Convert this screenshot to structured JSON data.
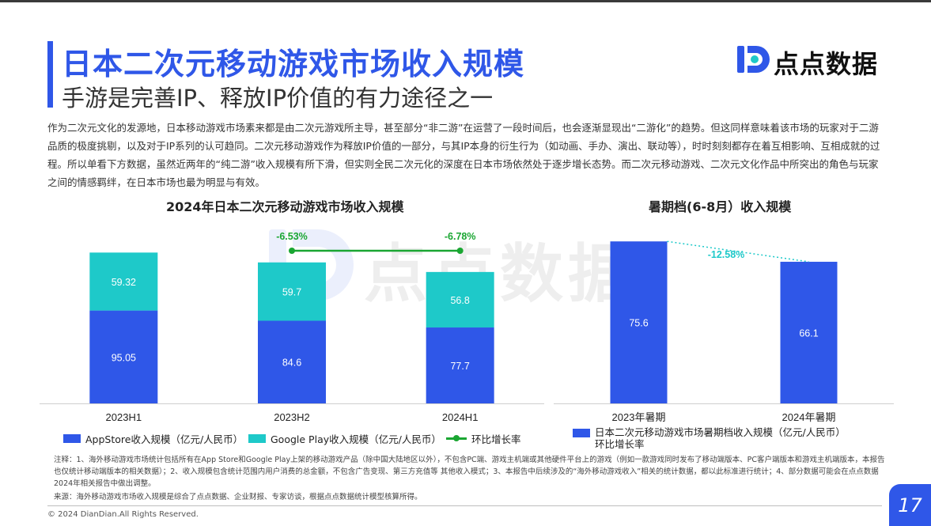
{
  "header": {
    "title": "日本二次元移动游戏市场收入规模",
    "subtitle": "手游是完善IP、释放IP价值的有力途径之一",
    "logo_text": "点点数据"
  },
  "intro": "作为二次元文化的发源地，日本移动游戏市场素来都是由二次元游戏所主导，甚至部分“非二游”在运营了一段时间后，也会逐渐显现出“二游化”的趋势。但这同样意味着该市场的玩家对于二游品质的极度挑剔，以及对于IP系列的认可趋同。二次元移动游戏作为释放IP价值的一部分，与其IP本身的衍生行为（如动画、手办、演出、联动等），时时刻刻都存在着互相影响、互相成就的过程。所以单看下方数据，虽然近两年的“纯二游”收入规模有所下滑，但实则全民二次元化的深度在日本市场依然处于逐步增长态势。而二次元移动游戏、二次元文化作品中所突出的角色与玩家之间的情感羁绊，在日本市场也最为明显与有效。",
  "colors": {
    "appstore": "#2f57e8",
    "googleplay": "#1ec9c9",
    "growth_line": "#1aa632",
    "summer": "#2f57e8",
    "summer_growth": "#1ec9c9"
  },
  "chart_data": [
    {
      "type": "bar",
      "stacked": true,
      "title": "2024年日本二次元移动游戏市场收入规模",
      "categories": [
        "2023H1",
        "2023H2",
        "2024H1"
      ],
      "series": [
        {
          "name": "AppStore收入规模（亿元/人民币）",
          "values": [
            95.05,
            84.6,
            77.7
          ]
        },
        {
          "name": "Google Play收入规模（亿元/人民币）",
          "values": [
            59.32,
            59.7,
            56.8
          ]
        }
      ],
      "line_series": {
        "name": "环比增长率",
        "labels": [
          "",
          "-6.53%",
          "-6.78%"
        ]
      },
      "data_labels": {
        "appstore": [
          "95.05",
          "84.6",
          "77.7"
        ],
        "googleplay": [
          "59.32",
          "59.7",
          "56.8"
        ]
      },
      "ylim": [
        0,
        170
      ],
      "grid": false,
      "legend": "bottom"
    },
    {
      "type": "bar",
      "title": "暑期档(6-8月）收入规模",
      "categories": [
        "2023年暑期",
        "2024年暑期"
      ],
      "series": [
        {
          "name": "日本二次元移动游戏市场暑期档收入规模（亿元/人民币）",
          "values": [
            75.6,
            66.1
          ]
        }
      ],
      "growth_label": "-12.58%",
      "growth_name": "环比增长率",
      "data_labels": [
        "75.6",
        "66.1"
      ],
      "ylim": [
        0,
        90
      ],
      "grid": false,
      "legend": "bottom"
    }
  ],
  "notes": {
    "note": "注释：1、海外移动游戏市场统计包括所有在App Store和Google Play上架的移动游戏产品（除中国大陆地区以外），不包含PC端、游戏主机端或其他硬件平台上的游戏（例如一款游戏同时发布了移动端版本、PC客户端版本和游戏主机端版本，本报告也仅统计移动端版本的相关数据）；2、收入规模包含统计范围内用户消费的总金额，不包含广告变现、第三方充值等 其他收入模式；3、本报告中后续涉及的“海外移动游戏收入”相关的统计数据，都以此标准进行统计；4、部分数据可能会在点点数据2024年相关报告中做出调整。",
    "source": "来源：海外移动游戏市场收入规模是综合了点点数据、企业财报、专家访谈，根据点点数据统计模型核算所得。"
  },
  "footer": {
    "copyright": "© 2024 DianDian.All Rights Reserved.",
    "page_number": "17"
  }
}
